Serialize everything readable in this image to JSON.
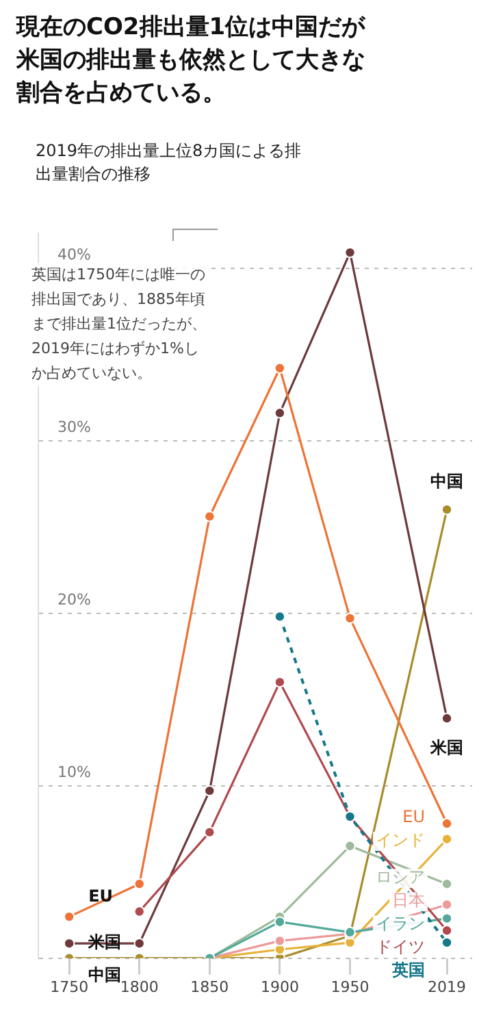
{
  "chart_data": {
    "type": "line",
    "title": "現在のCO2排出量1位は中国だが米国の排出量も依然として大きな割合を占めている。",
    "subtitle": "2019年の排出量上位8カ国による排出量割合の推移",
    "x": [
      1750,
      1800,
      1850,
      1900,
      1950,
      2019
    ],
    "series": [
      {
        "name": "中国",
        "color": "#a88c2c",
        "values": [
          0,
          0,
          0,
          0,
          1.3,
          26
        ]
      },
      {
        "name": "米国",
        "color": "#6e3a3c",
        "values": [
          0.85,
          0.85,
          9.7,
          31.6,
          40.9,
          13.9
        ]
      },
      {
        "name": "EU",
        "color": "#ee7336",
        "values": [
          2.4,
          4.3,
          25.6,
          34.2,
          19.7,
          7.8
        ]
      },
      {
        "name": "インド",
        "color": "#e8b238",
        "values": [
          null,
          null,
          0,
          0.5,
          0.9,
          6.9
        ]
      },
      {
        "name": "ロシア",
        "color": "#9dbb9c",
        "values": [
          null,
          null,
          0,
          2.4,
          6.5,
          4.3
        ]
      },
      {
        "name": "日本",
        "color": "#ec9a9a",
        "values": [
          null,
          null,
          0,
          1.0,
          1.4,
          3.1
        ]
      },
      {
        "name": "イラン",
        "color": "#52a99a",
        "values": [
          null,
          null,
          0,
          2.1,
          1.5,
          2.3
        ]
      },
      {
        "name": "ドイツ",
        "color": "#b04a4e",
        "values": [
          null,
          2.7,
          7.3,
          16.0,
          8.2,
          1.6
        ]
      },
      {
        "name": "英国",
        "color": "#16788a",
        "line_style": "dashed",
        "values": [
          null,
          null,
          null,
          19.8,
          8.2,
          0.9
        ]
      }
    ],
    "xlim": [
      1728,
      2037
    ],
    "xticks": [
      1750,
      1800,
      1850,
      1900,
      1950,
      2019
    ],
    "ylim": [
      0,
      42
    ],
    "yticks": [
      {
        "value": 0,
        "label": null
      },
      {
        "value": 10,
        "label": "10%"
      },
      {
        "value": 20,
        "label": "20%"
      },
      {
        "value": 30,
        "label": "30%"
      },
      {
        "value": 40,
        "label": "40%"
      }
    ],
    "grid": "y",
    "legend": false,
    "marker": "circle",
    "annotations": [
      "英国は1750年には唯一の排出国であり、1885年頃まで排出量1位だったが、2019年にはわずか1%しか占めていない。"
    ]
  }
}
